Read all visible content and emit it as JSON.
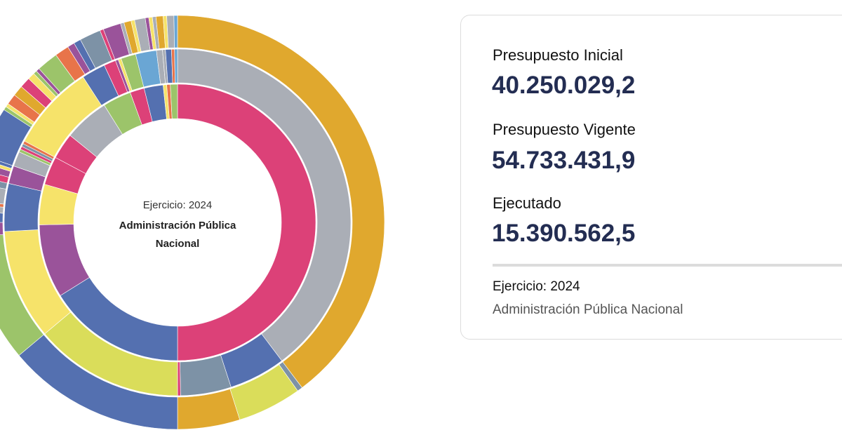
{
  "chart_data": {
    "type": "sunburst",
    "center": {
      "year_label": "Ejercicio: 2024",
      "name": "Administración Pública Nacional"
    },
    "colors": {
      "pink": "#dc4178",
      "gray": "#aaaeb6",
      "gold": "#e0a82e",
      "blue": "#5470b0",
      "purple": "#9a539a",
      "yellow": "#f6e36a",
      "lime": "#dadd5a",
      "green": "#9cc46a",
      "steel": "#7d92a6",
      "orange": "#e8744a",
      "lightblue": "#6aa6d4"
    },
    "rings": [
      {
        "level": 1,
        "segments": [
          [
            180,
            "pink"
          ],
          [
            58,
            "blue"
          ],
          [
            31,
            "purple"
          ],
          [
            17,
            "yellow"
          ],
          [
            12,
            "pink"
          ],
          [
            11,
            "pink"
          ],
          [
            19,
            "gray"
          ],
          [
            12,
            "green"
          ],
          [
            6,
            "pink"
          ],
          [
            8,
            "blue"
          ],
          [
            1.5,
            "yellow"
          ],
          [
            1.5,
            "orange"
          ],
          [
            3,
            "green"
          ]
        ]
      },
      {
        "level": 2,
        "segments": [
          [
            143,
            "gray"
          ],
          [
            19,
            "blue"
          ],
          [
            17,
            "steel"
          ],
          [
            1,
            "pink"
          ],
          [
            50,
            "lime"
          ],
          [
            37,
            "yellow"
          ],
          [
            16,
            "blue"
          ],
          [
            6,
            "purple"
          ],
          [
            5,
            "gray"
          ],
          [
            1,
            "green"
          ],
          [
            1,
            "pink"
          ],
          [
            1,
            "steel"
          ],
          [
            1,
            "orange"
          ],
          [
            29,
            "yellow"
          ],
          [
            8,
            "blue"
          ],
          [
            4,
            "pink"
          ],
          [
            1,
            "purple"
          ],
          [
            1,
            "yellow"
          ],
          [
            5,
            "green"
          ],
          [
            7,
            "lightblue"
          ],
          [
            2,
            "gray"
          ],
          [
            1,
            "gray"
          ],
          [
            2,
            "blue"
          ],
          [
            1,
            "orange"
          ],
          [
            1,
            "lightblue"
          ]
        ]
      },
      {
        "level": 3,
        "segments": [
          [
            143,
            "gold"
          ],
          [
            1.5,
            "steel"
          ],
          [
            18,
            "lime"
          ],
          [
            17.5,
            "gold"
          ],
          [
            50,
            "blue"
          ],
          [
            36,
            "green"
          ],
          [
            4,
            "purple"
          ],
          [
            3,
            "blue"
          ],
          [
            2,
            "gray"
          ],
          [
            1,
            "orange"
          ],
          [
            5,
            "gray"
          ],
          [
            2,
            "steel"
          ],
          [
            2,
            "pink"
          ],
          [
            2,
            "purple"
          ],
          [
            1,
            "yellow"
          ],
          [
            1,
            "blue"
          ],
          [
            14,
            "blue"
          ],
          [
            1,
            "green"
          ],
          [
            1,
            "yellow"
          ],
          [
            3,
            "orange"
          ],
          [
            3,
            "gold"
          ],
          [
            3,
            "pink"
          ],
          [
            2,
            "yellow"
          ],
          [
            1,
            "green"
          ],
          [
            1,
            "purple"
          ],
          [
            6,
            "green"
          ],
          [
            4,
            "orange"
          ],
          [
            2,
            "purple"
          ],
          [
            2,
            "blue"
          ],
          [
            6,
            "steel"
          ],
          [
            1,
            "pink"
          ],
          [
            5,
            "purple"
          ],
          [
            1,
            "gray"
          ],
          [
            2,
            "gold"
          ],
          [
            1,
            "yellow"
          ],
          [
            3,
            "gray"
          ],
          [
            1,
            "purple"
          ],
          [
            1,
            "yellow"
          ],
          [
            1,
            "gray"
          ],
          [
            2,
            "gold"
          ],
          [
            1,
            "yellow"
          ],
          [
            2,
            "gray"
          ],
          [
            1,
            "lightblue"
          ]
        ]
      }
    ]
  },
  "summary": {
    "initial_label": "Presupuesto Inicial",
    "initial_value": "40.250.029,2",
    "current_label": "Presupuesto Vigente",
    "current_value": "54.733.431,9",
    "executed_label": "Ejecutado",
    "executed_value": "15.390.562,5",
    "year_label": "Ejercicio: 2024",
    "entity": "Administración Pública Nacional"
  }
}
